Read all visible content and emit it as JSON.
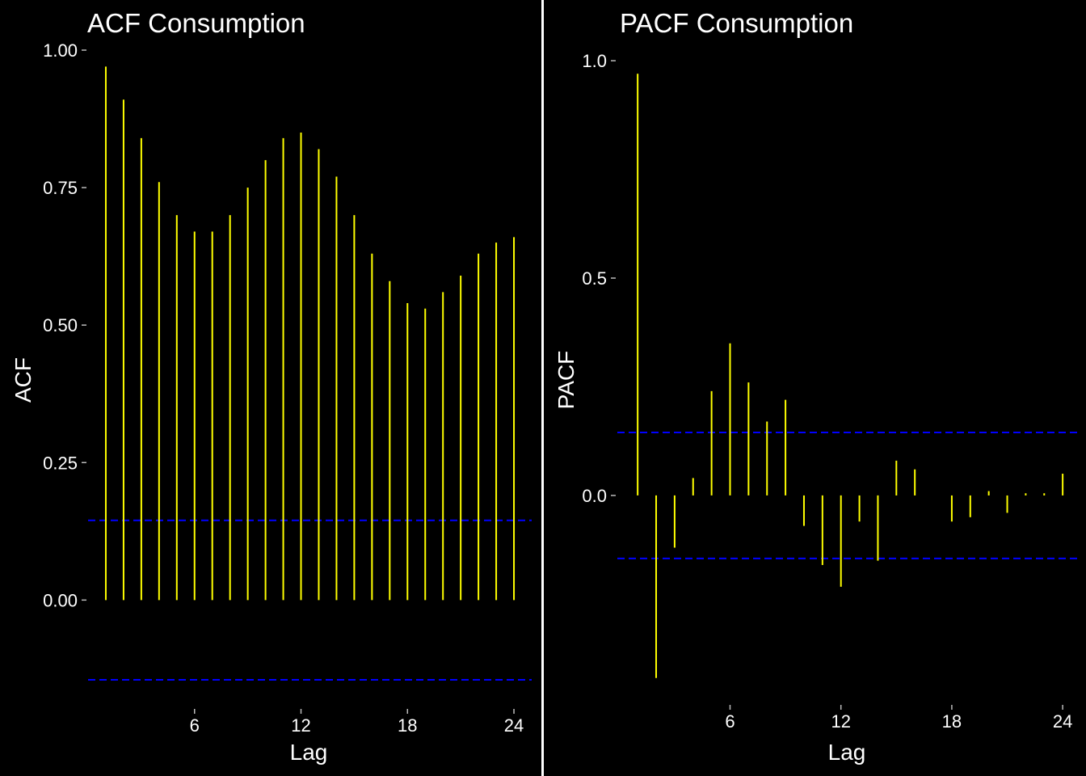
{
  "charts": [
    {
      "title": "ACF Consumption",
      "xlabel": "Lag",
      "ylabel": "ACF",
      "chart_data": {
        "type": "bar",
        "title": "ACF Consumption",
        "xlabel": "Lag",
        "ylabel": "ACF",
        "lags": [
          1,
          2,
          3,
          4,
          5,
          6,
          7,
          8,
          9,
          10,
          11,
          12,
          13,
          14,
          15,
          16,
          17,
          18,
          19,
          20,
          21,
          22,
          23,
          24
        ],
        "values": [
          0.97,
          0.91,
          0.84,
          0.76,
          0.7,
          0.67,
          0.67,
          0.7,
          0.75,
          0.8,
          0.84,
          0.85,
          0.82,
          0.77,
          0.7,
          0.63,
          0.58,
          0.54,
          0.53,
          0.56,
          0.59,
          0.63,
          0.65,
          0.66
        ],
        "conf_limits": [
          0.145,
          -0.145
        ],
        "xlim": [
          0.0,
          25.0
        ],
        "ylim": [
          -0.195,
          1.025
        ],
        "xticks": [
          6,
          12,
          18,
          24
        ],
        "yticks": [
          0.0,
          0.25,
          0.5,
          0.75,
          1.0
        ],
        "ytick_labels": [
          "0.00",
          "0.25",
          "0.50",
          "0.75",
          "1.00"
        ],
        "bar_color": "#ffff00",
        "conf_color": "#0000ff",
        "background": "#000000"
      }
    },
    {
      "title": "PACF Consumption",
      "xlabel": "Lag",
      "ylabel": "PACF",
      "chart_data": {
        "type": "bar",
        "title": "PACF Consumption",
        "xlabel": "Lag",
        "ylabel": "PACF",
        "lags": [
          1,
          2,
          3,
          4,
          5,
          6,
          7,
          8,
          9,
          10,
          11,
          12,
          13,
          14,
          15,
          16,
          17,
          18,
          19,
          20,
          21,
          22,
          23,
          24
        ],
        "values": [
          0.97,
          -0.42,
          -0.12,
          0.04,
          0.24,
          0.35,
          0.26,
          0.17,
          0.22,
          -0.07,
          -0.16,
          -0.21,
          -0.06,
          -0.15,
          0.08,
          0.06,
          0.0,
          -0.06,
          -0.05,
          0.01,
          -0.04,
          0.005,
          0.005,
          0.05
        ],
        "conf_limits": [
          0.145,
          -0.145
        ],
        "xlim": [
          -0.1,
          25.0
        ],
        "ylim": [
          -0.478,
          1.043
        ],
        "xticks": [
          6,
          12,
          18,
          24
        ],
        "yticks": [
          0.0,
          0.5,
          1.0
        ],
        "ytick_labels": [
          "0.0",
          "0.5",
          "1.0"
        ],
        "bar_color": "#ffff00",
        "conf_color": "#0000ff",
        "background": "#000000"
      }
    }
  ]
}
